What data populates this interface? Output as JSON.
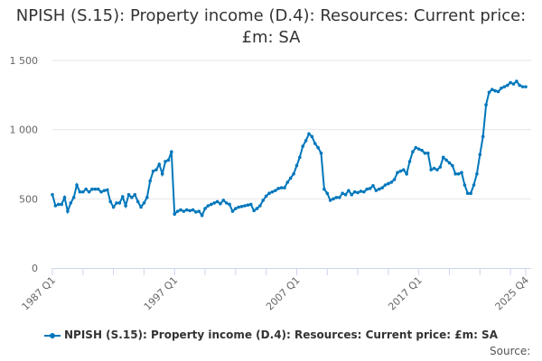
{
  "chart_data": {
    "type": "line",
    "title": "NPISH (S.15): Property income (D.4): Resources: Current price: £m: SA",
    "xlabel": "",
    "ylabel": "",
    "ylim": [
      0,
      1500
    ],
    "yticks": [
      0,
      500,
      1000,
      1500
    ],
    "ytick_labels": [
      "0",
      "500",
      "1 000",
      "1 500"
    ],
    "xtick_labels": [
      "1987 Q1",
      "1997 Q1",
      "2007 Q1",
      "2017 Q1",
      "2025 Q4"
    ],
    "grid": "horizontal",
    "legend_placement": "bottom",
    "color": "#0077bb",
    "series": [
      {
        "name": "NPISH (S.15): Property income (D.4): Resources: Current price: £m: SA",
        "quarterly_values_by_year": {
          "1987": [
            530,
            450,
            460,
            460
          ],
          "1988": [
            510,
            410,
            470,
            510
          ],
          "1989": [
            600,
            550,
            550,
            570
          ],
          "1990": [
            550,
            570,
            570,
            570
          ],
          "1991": [
            550,
            560,
            565,
            480
          ],
          "1992": [
            440,
            470,
            470,
            515
          ],
          "1993": [
            450,
            530,
            510,
            530
          ],
          "1994": [
            480,
            440,
            470,
            510
          ],
          "1995": [
            630,
            700,
            710,
            750
          ],
          "1996": [
            680,
            770,
            780,
            840
          ],
          "1997": [
            390,
            410,
            420,
            410
          ],
          "1998": [
            420,
            415,
            420,
            405
          ],
          "1999": [
            410,
            380,
            430,
            450
          ],
          "2000": [
            460,
            470,
            480,
            465
          ],
          "2001": [
            490,
            470,
            460,
            410
          ],
          "2002": [
            430,
            440,
            445,
            450
          ],
          "2003": [
            455,
            460,
            415,
            430
          ],
          "2004": [
            450,
            490,
            520,
            540
          ],
          "2005": [
            550,
            560,
            575,
            580
          ],
          "2006": [
            580,
            620,
            650,
            680
          ],
          "2007": [
            740,
            800,
            880,
            920
          ],
          "2008": [
            970,
            950,
            900,
            870
          ],
          "2009": [
            830,
            570,
            540,
            490
          ],
          "2010": [
            500,
            510,
            510,
            540
          ],
          "2011": [
            530,
            560,
            530,
            550
          ],
          "2012": [
            545,
            555,
            550,
            570
          ],
          "2013": [
            575,
            595,
            560,
            570
          ],
          "2014": [
            580,
            600,
            610,
            620
          ],
          "2015": [
            640,
            690,
            700,
            710
          ],
          "2016": [
            680,
            770,
            840,
            870
          ],
          "2017": [
            860,
            850,
            830,
            830
          ],
          "2018": [
            710,
            720,
            710,
            730
          ],
          "2019": [
            800,
            780,
            760,
            740
          ],
          "2020": [
            680,
            680,
            690,
            600
          ],
          "2021": [
            540,
            540,
            600,
            680
          ],
          "2022": [
            820,
            950,
            1180,
            1270
          ],
          "2023": [
            1290,
            1280,
            1275,
            1300
          ],
          "2024": [
            1310,
            1320,
            1340,
            1330
          ],
          "2025": [
            1350,
            1320,
            1310,
            1310
          ]
        }
      }
    ]
  },
  "source_label": "Source:"
}
